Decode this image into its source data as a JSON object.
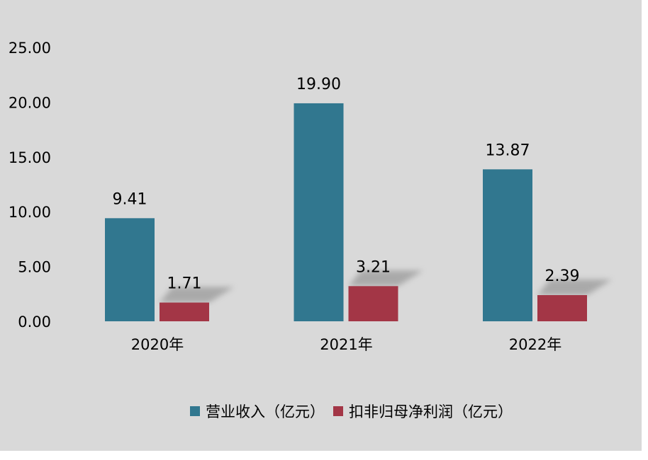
{
  "chart_data": {
    "type": "bar",
    "categories": [
      "2020年",
      "2021年",
      "2022年"
    ],
    "series": [
      {
        "name": "营业收入（亿元）",
        "values": [
          9.41,
          19.9,
          13.87
        ],
        "labels": [
          "9.41",
          "19.90",
          "13.87"
        ],
        "color": "#31778f"
      },
      {
        "name": "扣非归母净利润（亿元）",
        "values": [
          1.71,
          3.21,
          2.39
        ],
        "labels": [
          "1.71",
          "3.21",
          "2.39"
        ],
        "color": "#a33646"
      }
    ],
    "ylim": [
      0,
      25
    ],
    "yticks": [
      "0.00",
      "5.00",
      "10.00",
      "15.00",
      "20.00",
      "25.00"
    ],
    "grid": false,
    "legend": "bottom",
    "background": "#d9d9d9"
  }
}
